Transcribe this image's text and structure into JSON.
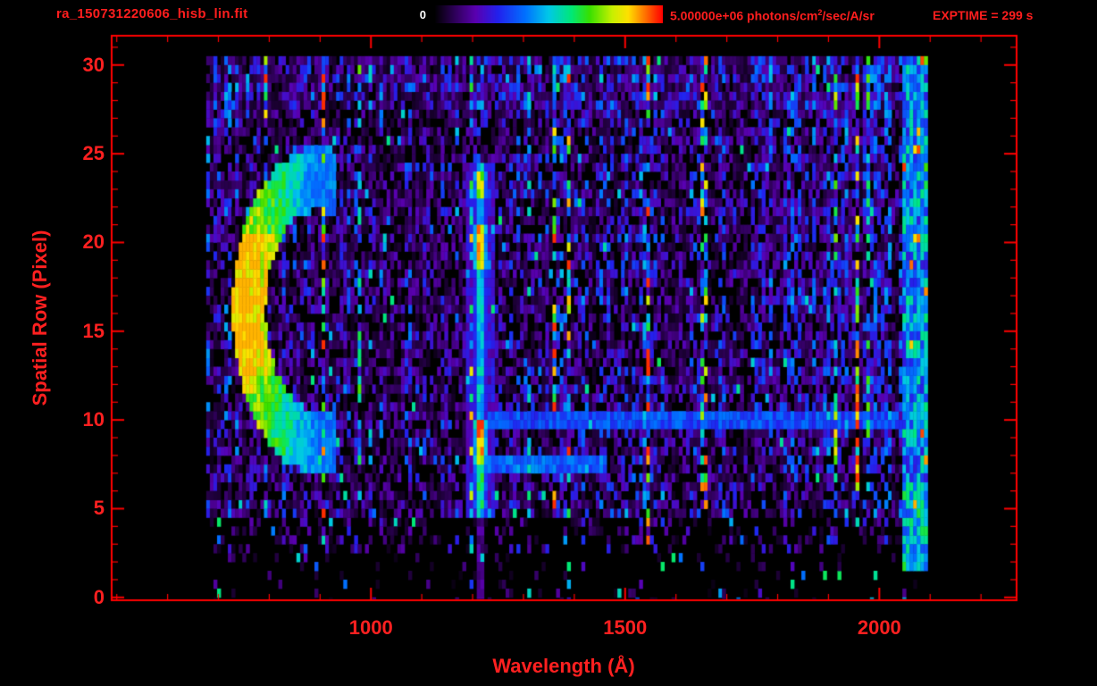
{
  "header": {
    "filename": "ra_150731220606_hisb_lin.fit",
    "exptime_label": "EXPTIME = 299 s",
    "colorbar": {
      "min_label": "0",
      "max_label_pre": "5.00000e+06 photons/cm",
      "max_label_sup": "2",
      "max_label_post": "/sec/A/sr"
    }
  },
  "chart_data": {
    "type": "heatmap",
    "title": "ra_150731220606_hisb_lin.fit",
    "xlabel": "Wavelength (Å)",
    "ylabel": "Spatial Row (Pixel)",
    "x_range": [
      490,
      2270
    ],
    "y_range": [
      -0.16,
      31.65
    ],
    "x_tick_values": [
      1000,
      1500,
      2000
    ],
    "x_tick_labels": [
      "1000",
      "1500",
      "2000"
    ],
    "x_minor_step": 100,
    "y_tick_values": [
      0,
      5,
      10,
      15,
      20,
      25,
      30
    ],
    "y_tick_labels": [
      "0",
      "5",
      "10",
      "15",
      "20",
      "25",
      "30"
    ],
    "y_minor_step": 1,
    "colorbar": {
      "min": 0,
      "max": 5000000,
      "max_text": "5.00000e+06",
      "units": "photons/cm^2/sec/A/sr"
    },
    "exptime_seconds": 299,
    "colormap_stops": [
      {
        "t": 0.0,
        "c": "#000000"
      },
      {
        "t": 0.08,
        "c": "#2a0050"
      },
      {
        "t": 0.18,
        "c": "#5a00b0"
      },
      {
        "t": 0.28,
        "c": "#2222ee"
      },
      {
        "t": 0.4,
        "c": "#0072ff"
      },
      {
        "t": 0.5,
        "c": "#00c8e8"
      },
      {
        "t": 0.6,
        "c": "#00e878"
      },
      {
        "t": 0.68,
        "c": "#38e000"
      },
      {
        "t": 0.78,
        "c": "#c8f000"
      },
      {
        "t": 0.85,
        "c": "#ffe000"
      },
      {
        "t": 0.92,
        "c": "#ff7800"
      },
      {
        "t": 1.0,
        "c": "#ff0000"
      }
    ],
    "data_extent": {
      "wavelength_range": [
        676,
        2095
      ],
      "row_range": [
        0,
        30.5
      ]
    },
    "features": [
      {
        "name": "background-noise",
        "type": "noise",
        "description": "faint purple-blue vertical streak noise across full detector"
      },
      {
        "name": "crescent-arc",
        "type": "arc",
        "center_wavelength": 895,
        "center_row": 16.2,
        "radius_wavelength": 135,
        "radius_rows": 7.4,
        "ring_width": 0.24,
        "description": "bright green-yellow C-shaped arc, rows 9-23, about 760-930 Å"
      },
      {
        "name": "lyman-alpha-line",
        "type": "vertical-line",
        "wavelength": 1216,
        "width_wavelength": 26,
        "glow_width": 58,
        "row_range": [
          5,
          24.3
        ],
        "hot_rows": [
          [
            7.5,
            10.2,
            0.9
          ],
          [
            18.3,
            21.2,
            0.84
          ],
          [
            22.6,
            24.2,
            0.78
          ],
          [
            5,
            7.5,
            0.62
          ]
        ],
        "description": "strong emission line with orange-red cores"
      },
      {
        "name": "row10-streak",
        "type": "horizontal-line",
        "row": 10,
        "half_width": 0.55,
        "level": 0.26,
        "wavelength_range": [
          1230,
          2040
        ]
      },
      {
        "name": "row7-streak",
        "type": "horizontal-line",
        "row": 7.6,
        "half_width": 0.6,
        "level": 0.3,
        "wavelength_range": [
          1225,
          1460
        ]
      },
      {
        "name": "red-edge-band",
        "type": "vertical-band",
        "wavelength_range": [
          2042,
          2095
        ],
        "row_range": [
          1.5,
          30.5
        ],
        "description": "green band with orange specks at red end of spectrum"
      },
      {
        "name": "right-cyan-region",
        "type": "region",
        "wavelength_range": [
          1750,
          2030
        ],
        "row_range": [
          7,
          30.5
        ],
        "description": "enhanced cyan-blue streak noise"
      }
    ]
  },
  "style": {
    "frame_color": "#ff0000",
    "text_color": "#ff2020",
    "min_label_color": "#ffffff",
    "background": "#000000"
  }
}
